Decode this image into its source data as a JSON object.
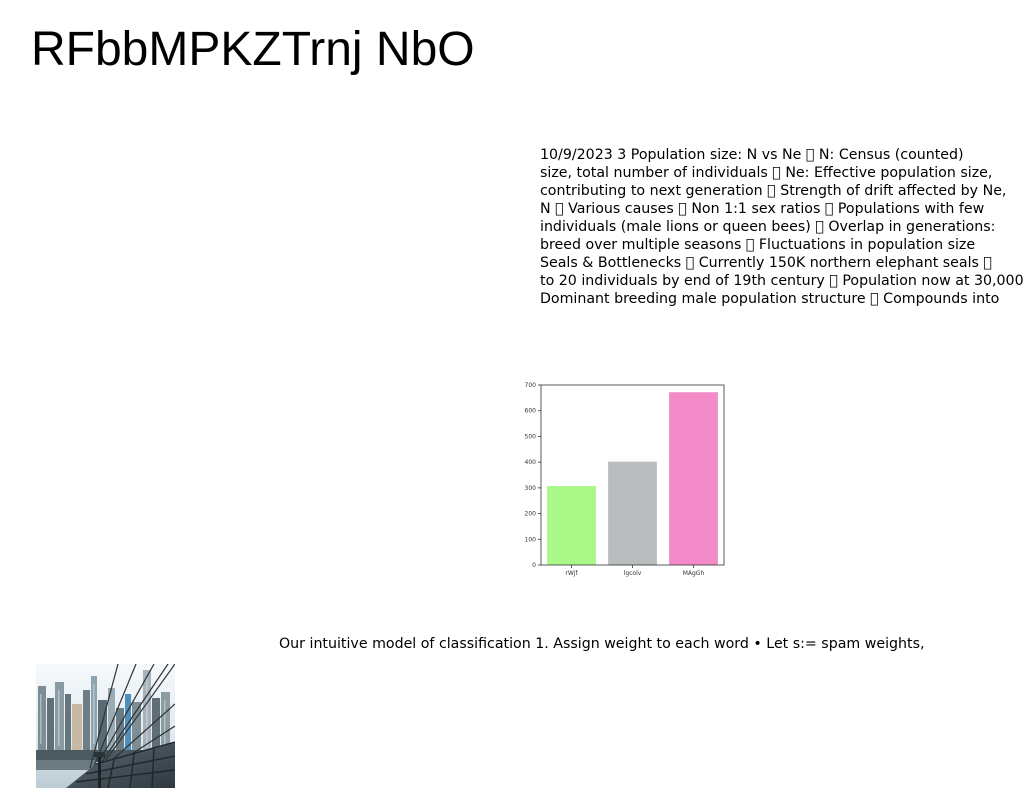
{
  "title": "RFbbMPKZTrnj NbO",
  "text_block": {
    "lines": [
      "10/9/2023 3 Population size: N vs Ne \u0000 N: Census (counted)",
      "size, total number of individuals \u0000 Ne: Effective population size,",
      "contributing to next generation \u0000 Strength of drift affected by Ne,",
      "N \u0000 Various causes \u0000 Non 1:1 sex ratios \u0000 Populations with few",
      "individuals (male lions or queen bees) \u0000 Overlap in generations:",
      "breed over multiple seasons \u0000 Fluctuations in population size",
      "Seals & Bottlenecks \u0000 Currently 150K northern elephant seals \u0000",
      "to 20 individuals by end of 19th century \u0000 Population now at 30,000",
      "Dominant breeding male population structure \u0000 Compounds into"
    ]
  },
  "chart_data": {
    "type": "bar",
    "categories": [
      "rWjf",
      "lgcolv",
      "MAgGh"
    ],
    "values": [
      307,
      402,
      672
    ],
    "colors": [
      "#aaf887",
      "#babdbe",
      "#f28bc8"
    ],
    "ylim": [
      0,
      700
    ],
    "yticks": [
      0,
      100,
      200,
      300,
      400,
      500,
      600,
      700
    ],
    "title": "",
    "xlabel": "",
    "ylabel": "",
    "grid": false
  },
  "caption": "Our intuitive model of classification 1. Assign weight to each word • Let s:= spam weights,",
  "photo": {
    "subject": "city skyline photo"
  }
}
